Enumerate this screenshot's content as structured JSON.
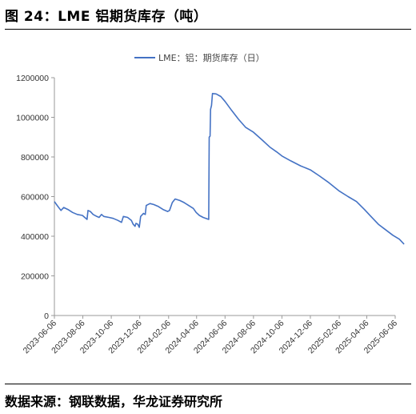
{
  "figure_title": "图 24：LME 铝期货库存（吨）",
  "source_note": "数据来源：钢联数据，华龙证券研究所",
  "chart_data": {
    "type": "line",
    "title": "",
    "xlabel": "",
    "ylabel": "",
    "ylim": [
      0,
      1200000
    ],
    "y_ticks": [
      "0",
      "200000",
      "400000",
      "600000",
      "800000",
      "1000000",
      "1200000"
    ],
    "x_ticks": [
      "2023-06-06",
      "2023-08-06",
      "2023-10-06",
      "2023-12-06",
      "2024-02-06",
      "2024-04-06",
      "2024-06-06",
      "2024-08-06",
      "2024-10-06",
      "2024-12-06",
      "2025-02-06",
      "2025-04-06",
      "2025-06-06"
    ],
    "legend": "top-center",
    "grid": false,
    "color": "#4472C4",
    "series": [
      {
        "name": "LME：铝：期货库存（日）",
        "points": [
          [
            "2023-06-06",
            575000
          ],
          [
            "2023-06-12",
            555000
          ],
          [
            "2023-06-20",
            530000
          ],
          [
            "2023-06-26",
            545000
          ],
          [
            "2023-07-05",
            535000
          ],
          [
            "2023-07-15",
            520000
          ],
          [
            "2023-07-25",
            510000
          ],
          [
            "2023-08-05",
            505000
          ],
          [
            "2023-08-10",
            495000
          ],
          [
            "2023-08-15",
            485000
          ],
          [
            "2023-08-17",
            530000
          ],
          [
            "2023-08-22",
            525000
          ],
          [
            "2023-08-28",
            510000
          ],
          [
            "2023-09-05",
            500000
          ],
          [
            "2023-09-10",
            495000
          ],
          [
            "2023-09-15",
            510000
          ],
          [
            "2023-09-20",
            500000
          ],
          [
            "2023-10-01",
            495000
          ],
          [
            "2023-10-10",
            490000
          ],
          [
            "2023-10-20",
            480000
          ],
          [
            "2023-10-28",
            470000
          ],
          [
            "2023-11-01",
            500000
          ],
          [
            "2023-11-10",
            495000
          ],
          [
            "2023-11-18",
            480000
          ],
          [
            "2023-11-22",
            460000
          ],
          [
            "2023-11-26",
            450000
          ],
          [
            "2023-11-28",
            465000
          ],
          [
            "2023-12-02",
            460000
          ],
          [
            "2023-12-05",
            445000
          ],
          [
            "2023-12-08",
            500000
          ],
          [
            "2023-12-14",
            515000
          ],
          [
            "2023-12-18",
            510000
          ],
          [
            "2023-12-20",
            555000
          ],
          [
            "2023-12-28",
            565000
          ],
          [
            "2024-01-05",
            560000
          ],
          [
            "2024-01-15",
            550000
          ],
          [
            "2024-01-25",
            535000
          ],
          [
            "2024-02-04",
            525000
          ],
          [
            "2024-02-08",
            530000
          ],
          [
            "2024-02-14",
            570000
          ],
          [
            "2024-02-20",
            588000
          ],
          [
            "2024-03-01",
            580000
          ],
          [
            "2024-03-10",
            570000
          ],
          [
            "2024-03-20",
            555000
          ],
          [
            "2024-03-30",
            540000
          ],
          [
            "2024-04-05",
            520000
          ],
          [
            "2024-04-12",
            505000
          ],
          [
            "2024-04-20",
            495000
          ],
          [
            "2024-04-26",
            490000
          ],
          [
            "2024-05-02",
            485000
          ],
          [
            "2024-05-03",
            900000
          ],
          [
            "2024-05-05",
            905000
          ],
          [
            "2024-05-06",
            1040000
          ],
          [
            "2024-05-08",
            1060000
          ],
          [
            "2024-05-10",
            1120000
          ],
          [
            "2024-05-18",
            1118000
          ],
          [
            "2024-05-28",
            1105000
          ],
          [
            "2024-06-06",
            1080000
          ],
          [
            "2024-06-20",
            1035000
          ],
          [
            "2024-07-05",
            990000
          ],
          [
            "2024-07-20",
            950000
          ],
          [
            "2024-08-06",
            925000
          ],
          [
            "2024-08-25",
            885000
          ],
          [
            "2024-09-10",
            850000
          ],
          [
            "2024-09-25",
            825000
          ],
          [
            "2024-10-06",
            805000
          ],
          [
            "2024-10-25",
            780000
          ],
          [
            "2024-11-15",
            755000
          ],
          [
            "2024-12-06",
            735000
          ],
          [
            "2024-12-25",
            705000
          ],
          [
            "2025-01-15",
            670000
          ],
          [
            "2025-02-06",
            628000
          ],
          [
            "2025-02-25",
            600000
          ],
          [
            "2025-03-15",
            575000
          ],
          [
            "2025-04-01",
            535000
          ],
          [
            "2025-04-15",
            500000
          ],
          [
            "2025-05-01",
            460000
          ],
          [
            "2025-05-15",
            435000
          ],
          [
            "2025-06-01",
            405000
          ],
          [
            "2025-06-15",
            385000
          ],
          [
            "2025-06-25",
            360000
          ]
        ]
      }
    ]
  }
}
